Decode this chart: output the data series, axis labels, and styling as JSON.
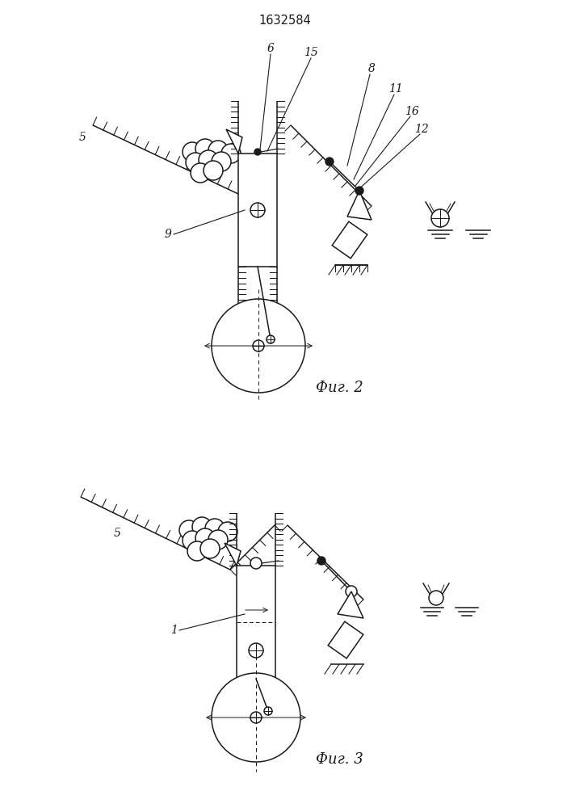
{
  "title": "1632584",
  "fig2_label": "Фиг. 2",
  "fig3_label": "Фиг. 3",
  "bg_color": "#ffffff",
  "line_color": "#1a1a1a",
  "lw": 1.1
}
